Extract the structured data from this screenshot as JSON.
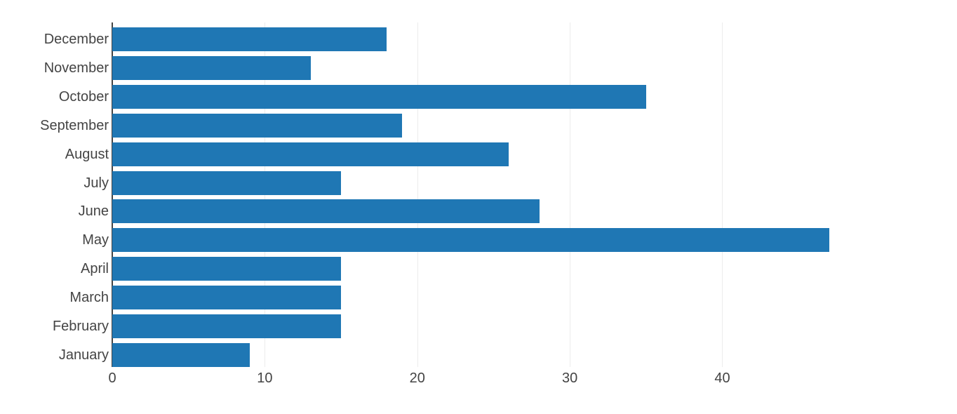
{
  "chart_data": {
    "type": "bar",
    "orientation": "horizontal",
    "title": "",
    "xlabel": "",
    "ylabel": "",
    "categories": [
      "December",
      "November",
      "October",
      "September",
      "August",
      "July",
      "June",
      "May",
      "April",
      "March",
      "February",
      "January"
    ],
    "values": [
      18,
      13,
      35,
      19,
      26,
      15,
      28,
      47,
      15,
      15,
      15,
      9
    ],
    "category_order": "listed top to bottom",
    "x_ticks": [
      0,
      10,
      20,
      30,
      40
    ],
    "xlim": [
      0,
      49.5
    ],
    "grid": true,
    "legend": false,
    "colors": {
      "bar": "#1f77b4",
      "gridline": "#ececec",
      "zero_line": "#444444",
      "tick_label": "#444444",
      "background": "#ffffff"
    }
  }
}
